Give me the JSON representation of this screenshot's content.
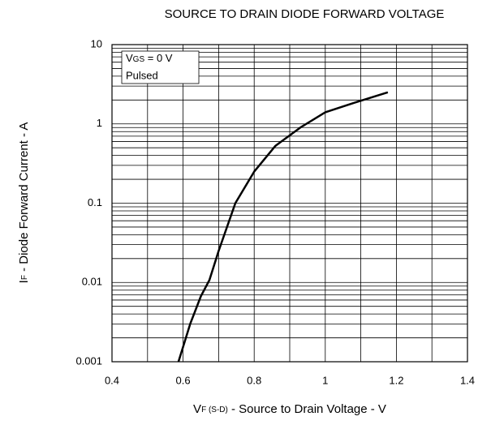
{
  "chart_data": {
    "type": "line",
    "title": "SOURCE TO DRAIN DIODE FORWARD VOLTAGE",
    "x_label": {
      "main": "V",
      "sub": "F (S-D)",
      "rest": " - Source to Drain Voltage - V"
    },
    "y_label": {
      "main": "I",
      "sub": "F",
      "rest": " - Diode Forward Current - A"
    },
    "annotations": [
      {
        "main": "V",
        "sub": "GS",
        "rest": " = 0 V"
      },
      {
        "main": "Pulsed"
      }
    ],
    "log_y": true,
    "grid": true,
    "xlim": [
      0.4,
      1.4
    ],
    "xticks": [
      0.4,
      0.6,
      0.8,
      1,
      1.2,
      1.4
    ],
    "ylim": [
      0.001,
      10
    ],
    "yticks": [
      10,
      1,
      0.1,
      0.01,
      0.001
    ],
    "series": [
      {
        "color": "#000000",
        "x": [
          0.587,
          0.62,
          0.65,
          0.674,
          0.7,
          0.747,
          0.8,
          0.86,
          0.93,
          1.0,
          1.09,
          1.176
        ],
        "values": [
          0.001,
          0.003,
          0.0067,
          0.0107,
          0.025,
          0.1,
          0.25,
          0.53,
          0.9,
          1.4,
          1.9,
          2.5
        ]
      }
    ]
  }
}
